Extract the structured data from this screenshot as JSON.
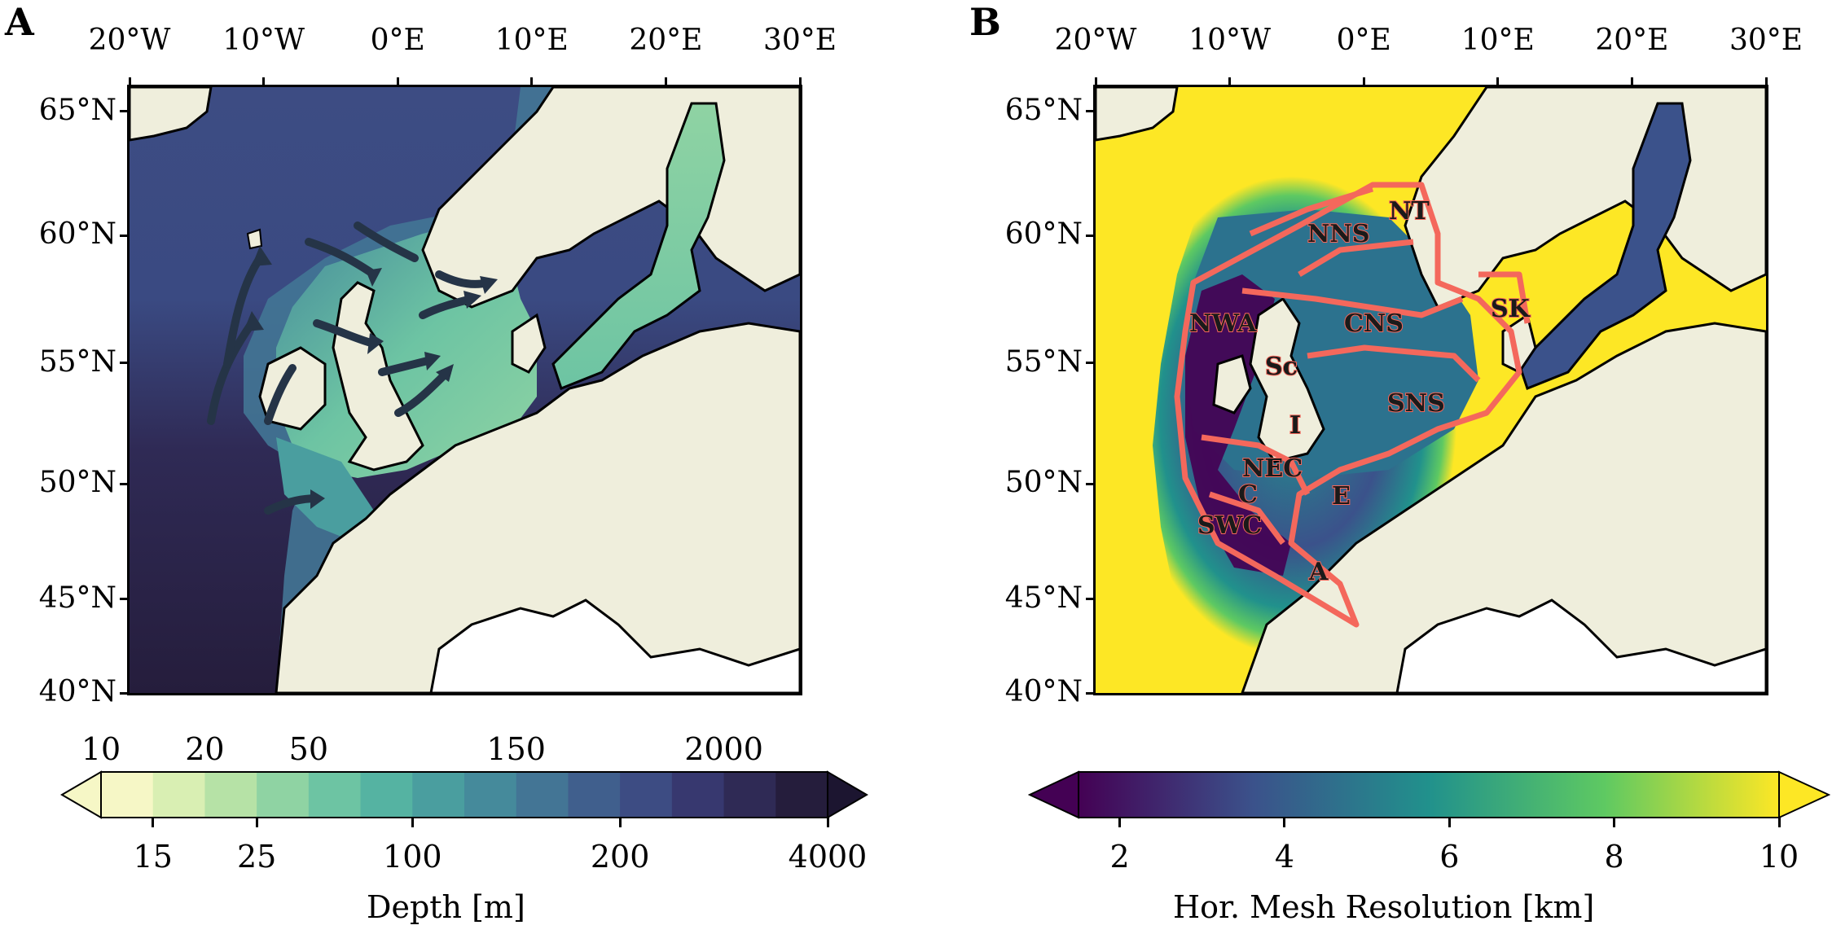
{
  "panel_a": {
    "letter": "A",
    "top_ticks": [
      "20°W",
      "10°W",
      "0°E",
      "10°E",
      "20°E",
      "30°E"
    ],
    "left_ticks": [
      "65°N",
      "60°N",
      "55°N",
      "50°N",
      "45°N",
      "40°N"
    ]
  },
  "panel_b": {
    "letter": "B",
    "top_ticks": [
      "20°W",
      "10°W",
      "0°E",
      "10°E",
      "20°E",
      "30°E"
    ],
    "left_ticks": [
      "65°N",
      "60°N",
      "55°N",
      "50°N",
      "45°N",
      "40°N"
    ],
    "regions": [
      "NT",
      "NNS",
      "NWA",
      "CNS",
      "SK",
      "Sc",
      "SNS",
      "I",
      "NEC",
      "C",
      "E",
      "SWC",
      "A"
    ]
  },
  "depth_colorbar": {
    "title": "Depth [m]",
    "upper_labels": [
      "10",
      "20",
      "50",
      "150",
      "2000"
    ],
    "lower_labels": [
      "15",
      "25",
      "100",
      "200",
      "4000"
    ],
    "colors": [
      "#f6f7c6",
      "#d9efb3",
      "#b6e2a6",
      "#8fd3a3",
      "#6dc4a3",
      "#55b3a2",
      "#4a9e9f",
      "#458a9b",
      "#437595",
      "#405f8d",
      "#3d4c83",
      "#37386f",
      "#2f2a55",
      "#251d3c"
    ]
  },
  "mesh_colorbar": {
    "title": "Hor. Mesh Resolution [km]",
    "labels": [
      "2",
      "4",
      "6",
      "8",
      "10"
    ],
    "colors": [
      "#440154",
      "#3b528b",
      "#21918c",
      "#5ec962",
      "#fde725"
    ]
  },
  "colors": {
    "land": "#efeedc",
    "coast": "#000000",
    "region_outline": "#f4685c",
    "arrow": "#253447"
  }
}
